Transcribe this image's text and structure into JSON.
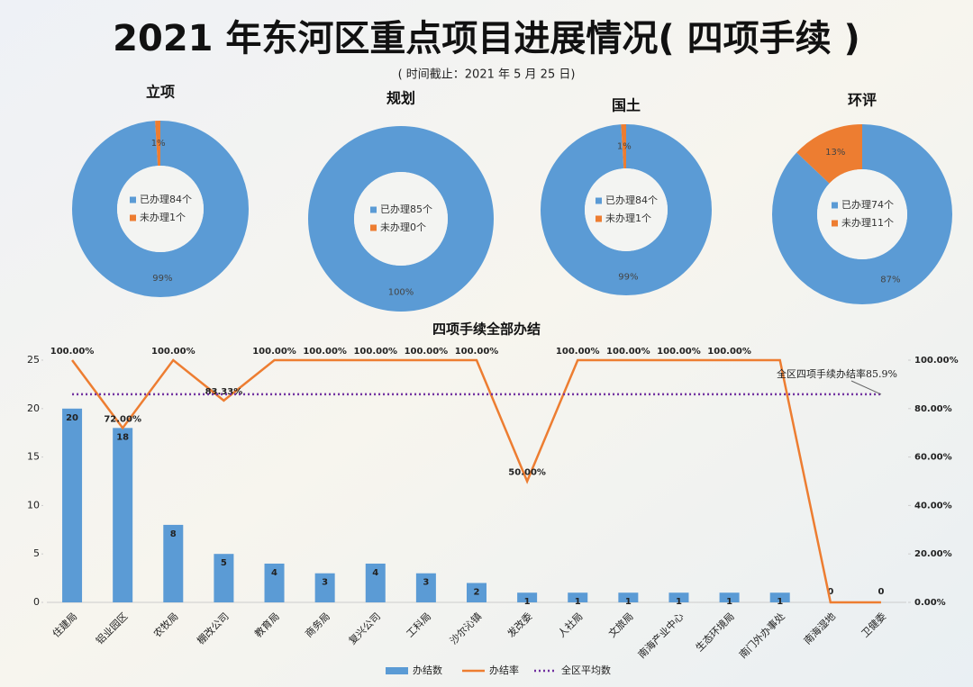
{
  "header": {
    "title": "2021 年东河区重点项目进展情况( 四项手续 )",
    "subtitle": "( 时间截止：2021 年 5 月 25 日)"
  },
  "chart_data": [
    {
      "type": "pie",
      "title": "立项",
      "categories": [
        "已办理84个",
        "未办理1个"
      ],
      "values": [
        99,
        1
      ],
      "value_labels": [
        "99%",
        "1%"
      ],
      "colors": [
        "#5b9bd5",
        "#ed7d31"
      ]
    },
    {
      "type": "pie",
      "title": "规划",
      "categories": [
        "已办理85个",
        "未办理0个"
      ],
      "values": [
        100,
        0
      ],
      "value_labels": [
        "100%",
        null
      ],
      "colors": [
        "#5b9bd5",
        "#ed7d31"
      ]
    },
    {
      "type": "pie",
      "title": "国土",
      "categories": [
        "已办理84个",
        "未办理1个"
      ],
      "values": [
        99,
        1
      ],
      "value_labels": [
        "99%",
        "1%"
      ],
      "colors": [
        "#5b9bd5",
        "#ed7d31"
      ]
    },
    {
      "type": "pie",
      "title": "环评",
      "categories": [
        "已办理74个",
        "未办理11个"
      ],
      "values": [
        87,
        13
      ],
      "value_labels": [
        "87%",
        "13%"
      ],
      "colors": [
        "#5b9bd5",
        "#ed7d31"
      ]
    },
    {
      "type": "combo",
      "title": "四项手续全部办结",
      "categories": [
        "住建局",
        "铝业园区",
        "农牧局",
        "棚改公司",
        "教育局",
        "商务局",
        "复兴公司",
        "工科局",
        "沙尔沁镇",
        "发改委",
        "人社局",
        "文旅局",
        "南海产业中心",
        "生态环境局",
        "南门外办事处",
        "南海湿地",
        "卫健委"
      ],
      "series": [
        {
          "name": "办结数",
          "type": "bar",
          "color": "#5b9bd5",
          "values": [
            20,
            18,
            8,
            5,
            4,
            3,
            4,
            3,
            2,
            1,
            1,
            1,
            1,
            1,
            1,
            0,
            0
          ]
        },
        {
          "name": "办结率",
          "type": "line",
          "axis": "y2",
          "color": "#ed7d31",
          "values": [
            100,
            72,
            100,
            83.33,
            100,
            100,
            100,
            100,
            100,
            50,
            100,
            100,
            100,
            100,
            100,
            0,
            0
          ],
          "value_labels": [
            "100.00%",
            "72.00%",
            "100.00%",
            "83.33%",
            "100.00%",
            "100.00%",
            "100.00%",
            "100.00%",
            "100.00%",
            "50.00%",
            "100.00%",
            "100.00%",
            "100.00%",
            "100.00%",
            null,
            null,
            null
          ]
        },
        {
          "name": "全区平均数",
          "type": "dotted",
          "axis": "y2",
          "color": "#7030a0",
          "values": [
            85.9,
            85.9,
            85.9,
            85.9,
            85.9,
            85.9,
            85.9,
            85.9,
            85.9,
            85.9,
            85.9,
            85.9,
            85.9,
            85.9,
            85.9,
            85.9,
            85.9
          ]
        }
      ],
      "annotation": "全区四项手续办结率85.9%",
      "ylim": [
        0,
        25
      ],
      "yticks": [
        0,
        5,
        10,
        15,
        20,
        25
      ],
      "y2lim": [
        0,
        100
      ],
      "y2ticks": [
        {
          "value": 0,
          "label": "0.00%"
        },
        {
          "value": 20,
          "label": "20.00%"
        },
        {
          "value": 40,
          "label": "40.00%"
        },
        {
          "value": 60,
          "label": "60.00%"
        },
        {
          "value": 80,
          "label": "80.00%"
        },
        {
          "value": 100,
          "label": "100.00%"
        }
      ]
    }
  ]
}
